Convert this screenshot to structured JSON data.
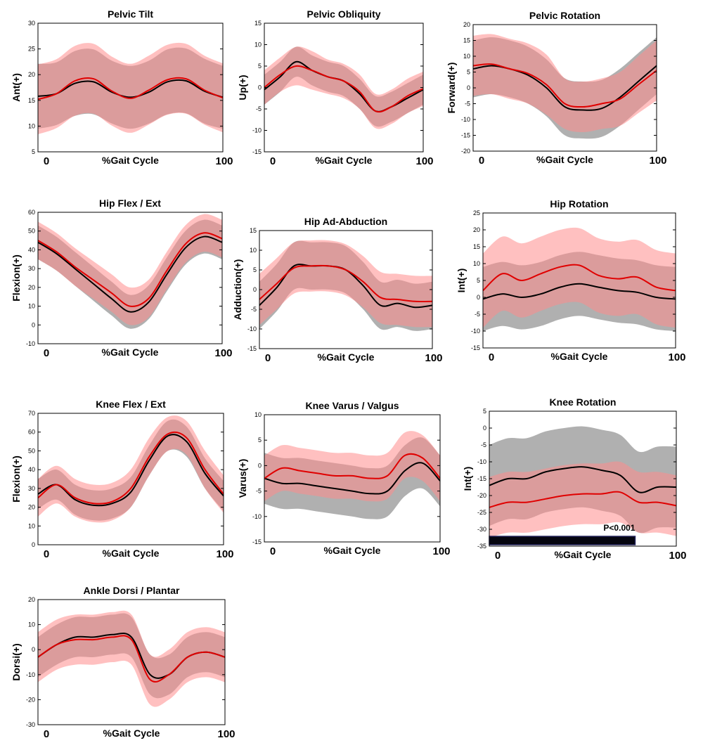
{
  "chart_data": [
    {
      "type": "line",
      "title": "Pelvic Tilt",
      "ylabel": "Ant(+)",
      "xlabel": "%Gait Cycle",
      "x_ticks": [
        "0",
        "100"
      ],
      "ylim": [
        5,
        30
      ],
      "y_ticks": [
        "5",
        "10",
        "15",
        "20",
        "25",
        "30"
      ],
      "x": [
        0,
        10,
        20,
        30,
        40,
        50,
        60,
        70,
        80,
        90,
        100
      ],
      "series": [
        {
          "color": "#000000",
          "band_color": "#969696",
          "values": [
            15.8,
            16.3,
            18.3,
            18.6,
            16.6,
            15.6,
            16.6,
            18.6,
            18.8,
            16.8,
            15.6
          ],
          "sd": [
            6.3,
            6.1,
            6.3,
            6.3,
            6.1,
            6.1,
            6.1,
            6.3,
            6.3,
            6.3,
            6.1
          ]
        },
        {
          "color": "#e00000",
          "band_color": "#ff8c8c",
          "values": [
            15.2,
            16.3,
            18.8,
            19.2,
            16.8,
            15.4,
            17.0,
            19.0,
            19.2,
            17.0,
            15.5
          ],
          "sd": [
            6.8,
            6.7,
            6.8,
            6.8,
            6.7,
            6.7,
            6.7,
            6.8,
            6.8,
            6.7,
            6.7
          ]
        }
      ]
    },
    {
      "type": "line",
      "title": "Pelvic Obliquity",
      "ylabel": "Up(+)",
      "xlabel": "%Gait Cycle",
      "x_ticks": [
        "0",
        "100"
      ],
      "ylim": [
        -15,
        15
      ],
      "y_ticks": [
        "-15",
        "-10",
        "-5",
        "0",
        "5",
        "10",
        "15"
      ],
      "x": [
        0,
        10,
        20,
        30,
        40,
        50,
        60,
        70,
        80,
        90,
        100
      ],
      "series": [
        {
          "color": "#000000",
          "band_color": "#969696",
          "values": [
            -0.5,
            2.5,
            6.0,
            4.0,
            2.5,
            1.5,
            -1.5,
            -5.5,
            -4.5,
            -2.5,
            -0.5
          ],
          "sd": [
            3.5,
            3.5,
            3.5,
            3.5,
            3.5,
            3.5,
            3.5,
            3.5,
            3.5,
            3.5,
            3.5
          ]
        },
        {
          "color": "#e00000",
          "band_color": "#ff8c8c",
          "values": [
            0.0,
            3.0,
            5.0,
            4.0,
            2.5,
            1.5,
            -1.0,
            -5.5,
            -4.5,
            -2.0,
            -0.3
          ],
          "sd": [
            4.0,
            4.0,
            4.5,
            4.5,
            4.0,
            4.0,
            4.0,
            4.0,
            4.0,
            4.0,
            4.0
          ]
        }
      ]
    },
    {
      "type": "line",
      "title": "Pelvic Rotation",
      "ylabel": "Forward(+)",
      "xlabel": "%Gait Cycle",
      "x_ticks": [
        "0",
        "100"
      ],
      "ylim": [
        -20,
        20
      ],
      "y_ticks": [
        "-20",
        "-15",
        "-10",
        "-5",
        "0",
        "5",
        "10",
        "15",
        "20"
      ],
      "x": [
        0,
        10,
        20,
        30,
        40,
        50,
        60,
        70,
        80,
        90,
        100
      ],
      "series": [
        {
          "color": "#000000",
          "band_color": "#969696",
          "values": [
            6.0,
            7.0,
            6.0,
            4.0,
            0.0,
            -6.0,
            -7.0,
            -6.5,
            -3.0,
            2.0,
            7.0
          ],
          "sd": [
            9.0,
            9.0,
            9.0,
            9.0,
            9.0,
            9.0,
            9.0,
            9.0,
            9.0,
            9.0,
            9.0
          ]
        },
        {
          "color": "#e00000",
          "band_color": "#ff8c8c",
          "values": [
            7.0,
            7.5,
            6.0,
            4.5,
            1.0,
            -5.0,
            -6.0,
            -5.0,
            -3.5,
            1.0,
            5.5
          ],
          "sd": [
            9.5,
            9.5,
            9.5,
            9.5,
            9.5,
            8.0,
            8.0,
            8.0,
            8.5,
            9.0,
            9.5
          ]
        }
      ]
    },
    {
      "type": "line",
      "title": "Hip Flex / Ext",
      "ylabel": "Flexion(+)",
      "xlabel": "%Gait Cycle",
      "x_ticks": [
        "0",
        "100"
      ],
      "ylim": [
        -10,
        60
      ],
      "y_ticks": [
        "-10",
        "0",
        "10",
        "20",
        "30",
        "40",
        "50",
        "60"
      ],
      "x": [
        0,
        10,
        20,
        30,
        40,
        50,
        60,
        70,
        80,
        90,
        100
      ],
      "series": [
        {
          "color": "#000000",
          "band_color": "#969696",
          "values": [
            44,
            38,
            30,
            22,
            14,
            7,
            12,
            27,
            41,
            47,
            44
          ],
          "sd": [
            9,
            9,
            9,
            9,
            9,
            9,
            9,
            9,
            9,
            9,
            9
          ]
        },
        {
          "color": "#e00000",
          "band_color": "#ff8c8c",
          "values": [
            45,
            39,
            31,
            24,
            17,
            10,
            14,
            29,
            43,
            49,
            46
          ],
          "sd": [
            10,
            10,
            10,
            10,
            10,
            10,
            10,
            10,
            10,
            10,
            10
          ]
        }
      ]
    },
    {
      "type": "line",
      "title": "Hip Ad-Abduction",
      "ylabel": "Adduction(+)",
      "xlabel": "%Gait Cycle",
      "x_ticks": [
        "0",
        "100"
      ],
      "ylim": [
        -15,
        15
      ],
      "y_ticks": [
        "-15",
        "-10",
        "-5",
        "0",
        "5",
        "10",
        "15"
      ],
      "x": [
        0,
        10,
        20,
        30,
        40,
        50,
        60,
        70,
        80,
        90,
        100
      ],
      "series": [
        {
          "color": "#000000",
          "band_color": "#969696",
          "values": [
            -4.0,
            0.5,
            6.0,
            6.0,
            6.0,
            5.0,
            1.0,
            -4.0,
            -3.5,
            -4.5,
            -4.0
          ],
          "sd": [
            6.0,
            6.0,
            6.0,
            6.0,
            6.0,
            6.0,
            6.0,
            6.0,
            6.0,
            6.0,
            6.0
          ]
        },
        {
          "color": "#e00000",
          "band_color": "#ff8c8c",
          "values": [
            -2.5,
            1.5,
            5.5,
            6.0,
            6.0,
            5.0,
            2.0,
            -2.0,
            -2.5,
            -3.0,
            -3.0
          ],
          "sd": [
            6.5,
            6.5,
            6.5,
            6.5,
            6.5,
            6.5,
            6.5,
            6.5,
            6.5,
            6.5,
            6.5
          ]
        }
      ]
    },
    {
      "type": "line",
      "title": "Hip Rotation",
      "ylabel": "Int(+)",
      "xlabel": "%Gait Cycle",
      "x_ticks": [
        "0",
        "100"
      ],
      "ylim": [
        -15,
        25
      ],
      "y_ticks": [
        "-15",
        "-10",
        "-5",
        "0",
        "5",
        "10",
        "15",
        "20",
        "25"
      ],
      "x": [
        0,
        10,
        20,
        30,
        40,
        50,
        60,
        70,
        80,
        90,
        100
      ],
      "series": [
        {
          "color": "#000000",
          "band_color": "#969696",
          "values": [
            -0.5,
            1.0,
            0.0,
            1.0,
            3.0,
            4.0,
            3.0,
            2.0,
            1.5,
            0.0,
            -0.5
          ],
          "sd": [
            9.5,
            9.5,
            9.5,
            9.5,
            9.5,
            9.5,
            9.5,
            9.5,
            9.5,
            9.5,
            9.5
          ]
        },
        {
          "color": "#e00000",
          "band_color": "#ff8c8c",
          "values": [
            2.0,
            7.0,
            5.0,
            7.0,
            9.0,
            9.5,
            6.5,
            5.5,
            6.0,
            3.0,
            2.0
          ],
          "sd": [
            11.0,
            11.0,
            11.0,
            11.0,
            11.0,
            11.0,
            11.0,
            11.0,
            11.0,
            11.0,
            11.0
          ]
        }
      ]
    },
    {
      "type": "line",
      "title": "Knee Flex / Ext",
      "ylabel": "Flexion(+)",
      "xlabel": "%Gait Cycle",
      "x_ticks": [
        "0",
        "100"
      ],
      "ylim": [
        0,
        70
      ],
      "y_ticks": [
        "0",
        "10",
        "20",
        "30",
        "40",
        "50",
        "60",
        "70"
      ],
      "x": [
        0,
        10,
        20,
        30,
        40,
        50,
        60,
        70,
        80,
        90,
        100
      ],
      "series": [
        {
          "color": "#000000",
          "band_color": "#969696",
          "values": [
            27,
            32,
            24,
            21,
            22,
            28,
            45,
            58,
            55,
            38,
            26
          ],
          "sd": [
            8,
            8,
            8,
            8,
            8,
            8,
            8,
            8,
            8,
            8,
            8
          ]
        },
        {
          "color": "#e00000",
          "band_color": "#ff8c8c",
          "values": [
            25,
            32,
            25,
            22,
            23,
            30,
            47,
            59,
            57,
            40,
            27
          ],
          "sd": [
            10,
            10,
            10,
            10,
            10,
            10,
            10,
            9,
            9,
            10,
            10
          ]
        }
      ]
    },
    {
      "type": "line",
      "title": "Knee Varus / Valgus",
      "ylabel": "Varus(+)",
      "xlabel": "%Gait Cycle",
      "x_ticks": [
        "0",
        "100"
      ],
      "ylim": [
        -15,
        10
      ],
      "y_ticks": [
        "-15",
        "-10",
        "-5",
        "0",
        "5",
        "10"
      ],
      "x": [
        0,
        10,
        20,
        30,
        40,
        50,
        60,
        70,
        80,
        90,
        100
      ],
      "series": [
        {
          "color": "#000000",
          "band_color": "#969696",
          "values": [
            -2.5,
            -3.5,
            -3.5,
            -4.0,
            -4.5,
            -5.0,
            -5.5,
            -5.0,
            -1.0,
            0.5,
            -3.0
          ],
          "sd": [
            5.0,
            5.0,
            5.0,
            5.0,
            5.0,
            5.0,
            5.0,
            5.0,
            5.0,
            5.0,
            5.0
          ]
        },
        {
          "color": "#e00000",
          "band_color": "#ff8c8c",
          "values": [
            -2.5,
            -0.5,
            -1.0,
            -1.5,
            -2.0,
            -2.0,
            -2.5,
            -2.0,
            2.0,
            1.5,
            -2.5
          ],
          "sd": [
            4.5,
            4.5,
            4.5,
            4.5,
            4.5,
            4.5,
            4.5,
            4.5,
            4.5,
            4.5,
            4.5
          ]
        }
      ]
    },
    {
      "type": "line",
      "title": "Knee Rotation",
      "ylabel": "Int(+)",
      "xlabel": "%Gait Cycle",
      "x_ticks": [
        "0",
        "100"
      ],
      "ylim": [
        -35,
        5
      ],
      "y_ticks": [
        "-35",
        "-30",
        "-25",
        "-20",
        "-15",
        "-10",
        "-5",
        "0",
        "5"
      ],
      "x": [
        0,
        10,
        20,
        30,
        40,
        50,
        60,
        70,
        80,
        90,
        100
      ],
      "annotation": "P<0.001",
      "significance_bar": [
        0,
        78
      ],
      "series": [
        {
          "color": "#000000",
          "band_color": "#969696",
          "values": [
            -17,
            -15,
            -15,
            -13,
            -12,
            -11.5,
            -12.5,
            -14,
            -19,
            -17.5,
            -17.5
          ],
          "sd": [
            12,
            12,
            12,
            12,
            12,
            12,
            12,
            12,
            12,
            12,
            12
          ]
        },
        {
          "color": "#e00000",
          "band_color": "#ff8c8c",
          "values": [
            -23.5,
            -22,
            -22,
            -21,
            -20,
            -19.5,
            -19.5,
            -19,
            -22,
            -22,
            -23
          ],
          "sd": [
            9,
            9,
            9,
            9,
            9,
            9,
            9,
            9,
            9,
            9,
            9
          ]
        }
      ]
    },
    {
      "type": "line",
      "title": "Ankle Dorsi / Plantar",
      "ylabel": "Dorsi(+)",
      "xlabel": "%Gait Cycle",
      "x_ticks": [
        "0",
        "100"
      ],
      "ylim": [
        -30,
        20
      ],
      "y_ticks": [
        "-30",
        "-20",
        "-10",
        "0",
        "10",
        "20"
      ],
      "x": [
        0,
        10,
        20,
        30,
        40,
        50,
        60,
        70,
        80,
        90,
        100
      ],
      "series": [
        {
          "color": "#000000",
          "band_color": "#969696",
          "values": [
            -3,
            2,
            5,
            5,
            6,
            5,
            -10,
            -10,
            -3,
            -1,
            -3
          ],
          "sd": [
            8,
            8,
            8,
            8,
            8,
            8,
            8,
            8,
            8,
            8,
            8
          ]
        },
        {
          "color": "#e00000",
          "band_color": "#ff8c8c",
          "values": [
            -3,
            2,
            4,
            4,
            5,
            4,
            -12,
            -10,
            -3,
            -1,
            -3
          ],
          "sd": [
            10,
            10,
            10,
            10,
            10,
            10,
            10,
            10,
            10,
            10,
            10
          ]
        }
      ]
    }
  ]
}
